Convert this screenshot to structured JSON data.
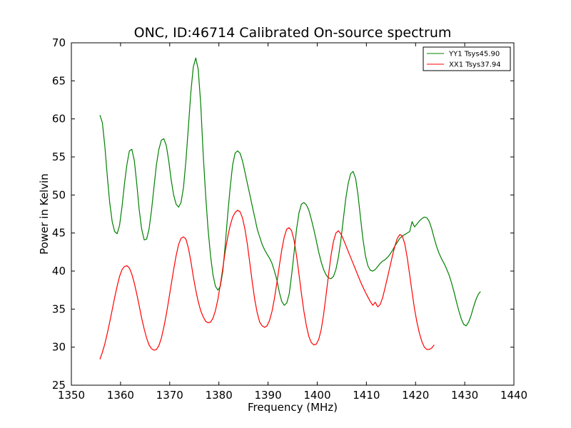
{
  "chart_data": {
    "type": "line",
    "title": "ONC, ID:46714 Calibrated On-source spectrum",
    "xlabel": "Frequency (MHz)",
    "ylabel": "Power in Kelvin",
    "xlim": [
      1350,
      1440
    ],
    "ylim": [
      25,
      70
    ],
    "xticks": [
      1350,
      1360,
      1370,
      1380,
      1390,
      1400,
      1410,
      1420,
      1430,
      1440
    ],
    "yticks": [
      25,
      30,
      35,
      40,
      45,
      50,
      55,
      60,
      65,
      70
    ],
    "grid": false,
    "legend_position": "top-right",
    "series": [
      {
        "name": "YY1 Tsys45.90",
        "color": "#008000",
        "points": [
          [
            1355.8,
            60.5
          ],
          [
            1356.3,
            59.5
          ],
          [
            1356.8,
            56.5
          ],
          [
            1357.3,
            52.5
          ],
          [
            1357.8,
            49.0
          ],
          [
            1358.3,
            46.5
          ],
          [
            1358.8,
            45.2
          ],
          [
            1359.3,
            44.9
          ],
          [
            1359.8,
            46.0
          ],
          [
            1360.3,
            48.5
          ],
          [
            1360.8,
            51.5
          ],
          [
            1361.3,
            54.0
          ],
          [
            1361.8,
            55.8
          ],
          [
            1362.3,
            56.0
          ],
          [
            1362.8,
            54.5
          ],
          [
            1363.3,
            51.5
          ],
          [
            1363.8,
            48.0
          ],
          [
            1364.3,
            45.5
          ],
          [
            1364.8,
            44.1
          ],
          [
            1365.3,
            44.2
          ],
          [
            1365.8,
            45.5
          ],
          [
            1366.3,
            48.0
          ],
          [
            1366.8,
            51.0
          ],
          [
            1367.3,
            54.0
          ],
          [
            1367.8,
            56.0
          ],
          [
            1368.3,
            57.2
          ],
          [
            1368.8,
            57.4
          ],
          [
            1369.3,
            56.5
          ],
          [
            1369.8,
            54.5
          ],
          [
            1370.3,
            52.0
          ],
          [
            1370.8,
            50.0
          ],
          [
            1371.3,
            48.8
          ],
          [
            1371.8,
            48.4
          ],
          [
            1372.3,
            49.0
          ],
          [
            1372.8,
            51.0
          ],
          [
            1373.3,
            54.5
          ],
          [
            1373.8,
            59.0
          ],
          [
            1374.3,
            63.5
          ],
          [
            1374.8,
            66.8
          ],
          [
            1375.3,
            68.0
          ],
          [
            1375.8,
            66.5
          ],
          [
            1376.3,
            62.0
          ],
          [
            1376.8,
            55.5
          ],
          [
            1377.3,
            50.0
          ],
          [
            1377.8,
            45.5
          ],
          [
            1378.3,
            42.0
          ],
          [
            1378.8,
            39.5
          ],
          [
            1379.3,
            38.0
          ],
          [
            1379.8,
            37.5
          ],
          [
            1380.3,
            38.0
          ],
          [
            1380.8,
            40.0
          ],
          [
            1381.3,
            43.5
          ],
          [
            1381.8,
            47.5
          ],
          [
            1382.3,
            51.0
          ],
          [
            1382.8,
            54.0
          ],
          [
            1383.3,
            55.5
          ],
          [
            1383.8,
            55.8
          ],
          [
            1384.3,
            55.5
          ],
          [
            1384.8,
            54.5
          ],
          [
            1385.3,
            53.0
          ],
          [
            1385.8,
            51.5
          ],
          [
            1386.3,
            50.0
          ],
          [
            1386.8,
            48.5
          ],
          [
            1387.3,
            47.0
          ],
          [
            1387.8,
            45.5
          ],
          [
            1388.3,
            44.5
          ],
          [
            1388.8,
            43.5
          ],
          [
            1389.3,
            42.8
          ],
          [
            1389.8,
            42.2
          ],
          [
            1390.3,
            41.7
          ],
          [
            1390.8,
            41.0
          ],
          [
            1391.3,
            40.0
          ],
          [
            1391.8,
            38.8
          ],
          [
            1392.3,
            37.2
          ],
          [
            1392.8,
            36.0
          ],
          [
            1393.3,
            35.5
          ],
          [
            1393.8,
            35.8
          ],
          [
            1394.3,
            37.0
          ],
          [
            1394.8,
            39.5
          ],
          [
            1395.3,
            42.5
          ],
          [
            1395.8,
            45.5
          ],
          [
            1396.3,
            47.7
          ],
          [
            1396.8,
            48.8
          ],
          [
            1397.3,
            49.0
          ],
          [
            1397.8,
            48.7
          ],
          [
            1398.3,
            48.0
          ],
          [
            1398.8,
            46.8
          ],
          [
            1399.3,
            45.5
          ],
          [
            1399.8,
            44.0
          ],
          [
            1400.3,
            42.5
          ],
          [
            1400.8,
            41.2
          ],
          [
            1401.3,
            40.2
          ],
          [
            1401.8,
            39.5
          ],
          [
            1402.3,
            39.1
          ],
          [
            1402.8,
            39.0
          ],
          [
            1403.3,
            39.3
          ],
          [
            1403.8,
            40.2
          ],
          [
            1404.3,
            41.8
          ],
          [
            1404.8,
            44.0
          ],
          [
            1405.3,
            46.8
          ],
          [
            1405.8,
            49.5
          ],
          [
            1406.3,
            51.5
          ],
          [
            1406.8,
            52.8
          ],
          [
            1407.3,
            53.1
          ],
          [
            1407.8,
            52.2
          ],
          [
            1408.3,
            50.0
          ],
          [
            1408.8,
            47.0
          ],
          [
            1409.3,
            44.2
          ],
          [
            1409.8,
            42.0
          ],
          [
            1410.3,
            40.7
          ],
          [
            1410.8,
            40.1
          ],
          [
            1411.3,
            40.0
          ],
          [
            1411.8,
            40.2
          ],
          [
            1412.3,
            40.6
          ],
          [
            1412.8,
            41.0
          ],
          [
            1413.3,
            41.3
          ],
          [
            1413.8,
            41.5
          ],
          [
            1414.3,
            41.8
          ],
          [
            1414.8,
            42.2
          ],
          [
            1415.3,
            42.7
          ],
          [
            1415.8,
            43.3
          ],
          [
            1416.3,
            43.8
          ],
          [
            1416.8,
            44.3
          ],
          [
            1417.3,
            44.6
          ],
          [
            1417.8,
            44.8
          ],
          [
            1418.3,
            45.0
          ],
          [
            1418.8,
            45.2
          ],
          [
            1419.3,
            46.5
          ],
          [
            1419.8,
            45.8
          ],
          [
            1420.3,
            46.2
          ],
          [
            1420.8,
            46.6
          ],
          [
            1421.3,
            46.9
          ],
          [
            1421.8,
            47.1
          ],
          [
            1422.3,
            47.0
          ],
          [
            1422.8,
            46.5
          ],
          [
            1423.3,
            45.5
          ],
          [
            1423.8,
            44.3
          ],
          [
            1424.3,
            43.2
          ],
          [
            1424.8,
            42.3
          ],
          [
            1425.3,
            41.6
          ],
          [
            1425.8,
            41.0
          ],
          [
            1426.3,
            40.3
          ],
          [
            1426.8,
            39.5
          ],
          [
            1427.3,
            38.5
          ],
          [
            1427.8,
            37.3
          ],
          [
            1428.3,
            36.0
          ],
          [
            1428.8,
            34.8
          ],
          [
            1429.3,
            33.7
          ],
          [
            1429.8,
            33.0
          ],
          [
            1430.3,
            32.8
          ],
          [
            1430.8,
            33.3
          ],
          [
            1431.3,
            34.2
          ],
          [
            1431.8,
            35.3
          ],
          [
            1432.3,
            36.3
          ],
          [
            1432.8,
            37.0
          ],
          [
            1433.2,
            37.3
          ]
        ]
      },
      {
        "name": "XX1 Tsys37.94",
        "color": "#ff0000",
        "points": [
          [
            1355.8,
            28.4
          ],
          [
            1356.3,
            29.3
          ],
          [
            1356.8,
            30.4
          ],
          [
            1357.3,
            31.8
          ],
          [
            1357.8,
            33.3
          ],
          [
            1358.3,
            34.9
          ],
          [
            1358.8,
            36.5
          ],
          [
            1359.3,
            38.0
          ],
          [
            1359.8,
            39.3
          ],
          [
            1360.3,
            40.2
          ],
          [
            1360.8,
            40.6
          ],
          [
            1361.3,
            40.7
          ],
          [
            1361.8,
            40.4
          ],
          [
            1362.3,
            39.6
          ],
          [
            1362.8,
            38.4
          ],
          [
            1363.3,
            37.0
          ],
          [
            1363.8,
            35.4
          ],
          [
            1364.3,
            33.8
          ],
          [
            1364.8,
            32.4
          ],
          [
            1365.3,
            31.2
          ],
          [
            1365.8,
            30.3
          ],
          [
            1366.3,
            29.8
          ],
          [
            1366.8,
            29.6
          ],
          [
            1367.3,
            29.7
          ],
          [
            1367.8,
            30.2
          ],
          [
            1368.3,
            31.2
          ],
          [
            1368.8,
            32.6
          ],
          [
            1369.3,
            34.3
          ],
          [
            1369.8,
            36.2
          ],
          [
            1370.3,
            38.2
          ],
          [
            1370.8,
            40.2
          ],
          [
            1371.3,
            42.0
          ],
          [
            1371.8,
            43.5
          ],
          [
            1372.3,
            44.3
          ],
          [
            1372.8,
            44.5
          ],
          [
            1373.3,
            44.2
          ],
          [
            1373.8,
            43.0
          ],
          [
            1374.3,
            41.3
          ],
          [
            1374.8,
            39.3
          ],
          [
            1375.3,
            37.5
          ],
          [
            1375.8,
            36.0
          ],
          [
            1376.3,
            34.8
          ],
          [
            1376.8,
            34.0
          ],
          [
            1377.3,
            33.4
          ],
          [
            1377.8,
            33.2
          ],
          [
            1378.3,
            33.3
          ],
          [
            1378.8,
            33.8
          ],
          [
            1379.3,
            34.8
          ],
          [
            1379.8,
            36.3
          ],
          [
            1380.3,
            38.2
          ],
          [
            1380.8,
            40.4
          ],
          [
            1381.3,
            42.6
          ],
          [
            1381.8,
            44.5
          ],
          [
            1382.3,
            46.0
          ],
          [
            1382.8,
            47.1
          ],
          [
            1383.3,
            47.7
          ],
          [
            1383.8,
            48.0
          ],
          [
            1384.3,
            47.8
          ],
          [
            1384.8,
            47.0
          ],
          [
            1385.3,
            45.5
          ],
          [
            1385.8,
            43.5
          ],
          [
            1386.3,
            41.0
          ],
          [
            1386.8,
            38.5
          ],
          [
            1387.3,
            36.2
          ],
          [
            1387.8,
            34.5
          ],
          [
            1388.3,
            33.3
          ],
          [
            1388.8,
            32.8
          ],
          [
            1389.3,
            32.6
          ],
          [
            1389.8,
            32.8
          ],
          [
            1390.3,
            33.5
          ],
          [
            1390.8,
            34.7
          ],
          [
            1391.3,
            36.4
          ],
          [
            1391.8,
            38.5
          ],
          [
            1392.3,
            40.7
          ],
          [
            1392.8,
            42.8
          ],
          [
            1393.3,
            44.5
          ],
          [
            1393.8,
            45.5
          ],
          [
            1394.3,
            45.7
          ],
          [
            1394.8,
            45.3
          ],
          [
            1395.3,
            44.0
          ],
          [
            1395.8,
            42.0
          ],
          [
            1396.3,
            39.5
          ],
          [
            1396.8,
            37.0
          ],
          [
            1397.3,
            34.7
          ],
          [
            1397.8,
            32.8
          ],
          [
            1398.3,
            31.4
          ],
          [
            1398.8,
            30.6
          ],
          [
            1399.3,
            30.3
          ],
          [
            1399.8,
            30.4
          ],
          [
            1400.3,
            31.0
          ],
          [
            1400.8,
            32.3
          ],
          [
            1401.3,
            34.3
          ],
          [
            1401.8,
            36.8
          ],
          [
            1402.3,
            39.5
          ],
          [
            1402.8,
            42.0
          ],
          [
            1403.3,
            43.9
          ],
          [
            1403.8,
            45.0
          ],
          [
            1404.3,
            45.3
          ],
          [
            1404.8,
            44.9
          ],
          [
            1405.3,
            44.2
          ],
          [
            1405.8,
            43.4
          ],
          [
            1406.3,
            42.6
          ],
          [
            1406.8,
            41.8
          ],
          [
            1407.3,
            41.0
          ],
          [
            1407.8,
            40.2
          ],
          [
            1408.3,
            39.4
          ],
          [
            1408.8,
            38.6
          ],
          [
            1409.3,
            37.9
          ],
          [
            1409.8,
            37.2
          ],
          [
            1410.3,
            36.6
          ],
          [
            1410.8,
            36.0
          ],
          [
            1411.3,
            35.5
          ],
          [
            1411.8,
            35.9
          ],
          [
            1412.3,
            35.3
          ],
          [
            1412.8,
            35.6
          ],
          [
            1413.3,
            36.5
          ],
          [
            1413.8,
            37.8
          ],
          [
            1414.3,
            39.2
          ],
          [
            1414.8,
            40.6
          ],
          [
            1415.3,
            42.0
          ],
          [
            1415.8,
            43.3
          ],
          [
            1416.3,
            44.3
          ],
          [
            1416.8,
            44.8
          ],
          [
            1417.3,
            44.6
          ],
          [
            1417.8,
            43.6
          ],
          [
            1418.3,
            41.8
          ],
          [
            1418.8,
            39.5
          ],
          [
            1419.3,
            37.2
          ],
          [
            1419.8,
            35.0
          ],
          [
            1420.3,
            33.2
          ],
          [
            1420.8,
            31.8
          ],
          [
            1421.3,
            30.7
          ],
          [
            1421.8,
            30.0
          ],
          [
            1422.3,
            29.7
          ],
          [
            1422.8,
            29.7
          ],
          [
            1423.3,
            29.9
          ],
          [
            1423.8,
            30.3
          ]
        ]
      }
    ]
  }
}
